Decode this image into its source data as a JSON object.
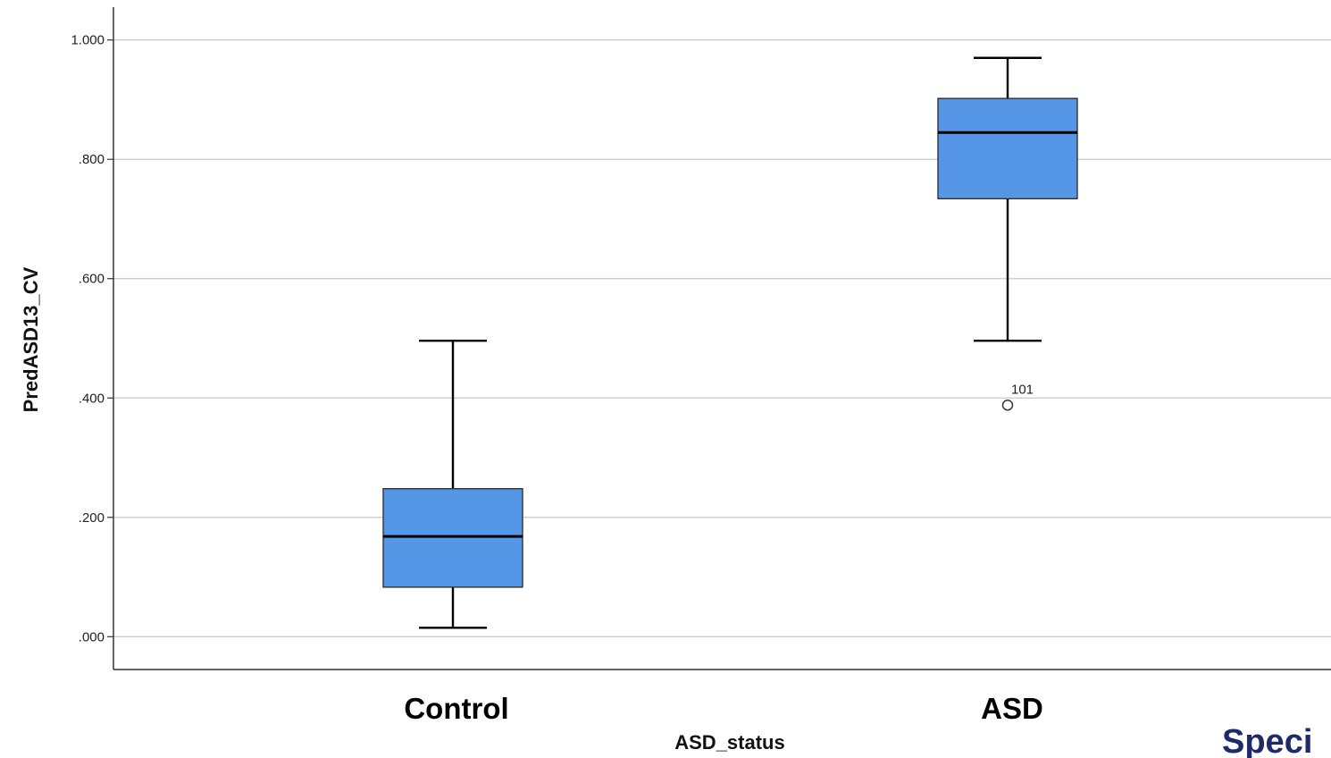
{
  "chart_data": {
    "type": "box",
    "xlabel": "ASD_status",
    "ylabel": "PredASD13_CV",
    "ylim": [
      -0.055,
      1.055
    ],
    "yticks": [
      0.0,
      0.2,
      0.4,
      0.6,
      0.8,
      1.0
    ],
    "ytick_labels": [
      ".000",
      ".200",
      ".400",
      ".600",
      ".800",
      "1.000"
    ],
    "grid": true,
    "box_color": "#5596e6",
    "categories": [
      "Control",
      "ASD"
    ],
    "boxes": [
      {
        "category": "Control",
        "whisker_low": 0.015,
        "q1": 0.083,
        "median": 0.168,
        "q3": 0.248,
        "whisker_high": 0.496,
        "outliers": []
      },
      {
        "category": "ASD",
        "whisker_low": 0.496,
        "q1": 0.734,
        "median": 0.845,
        "q3": 0.902,
        "whisker_high": 0.97,
        "outliers": [
          {
            "value": 0.388,
            "label": "101"
          }
        ]
      }
    ]
  },
  "corner_text": "Speci"
}
